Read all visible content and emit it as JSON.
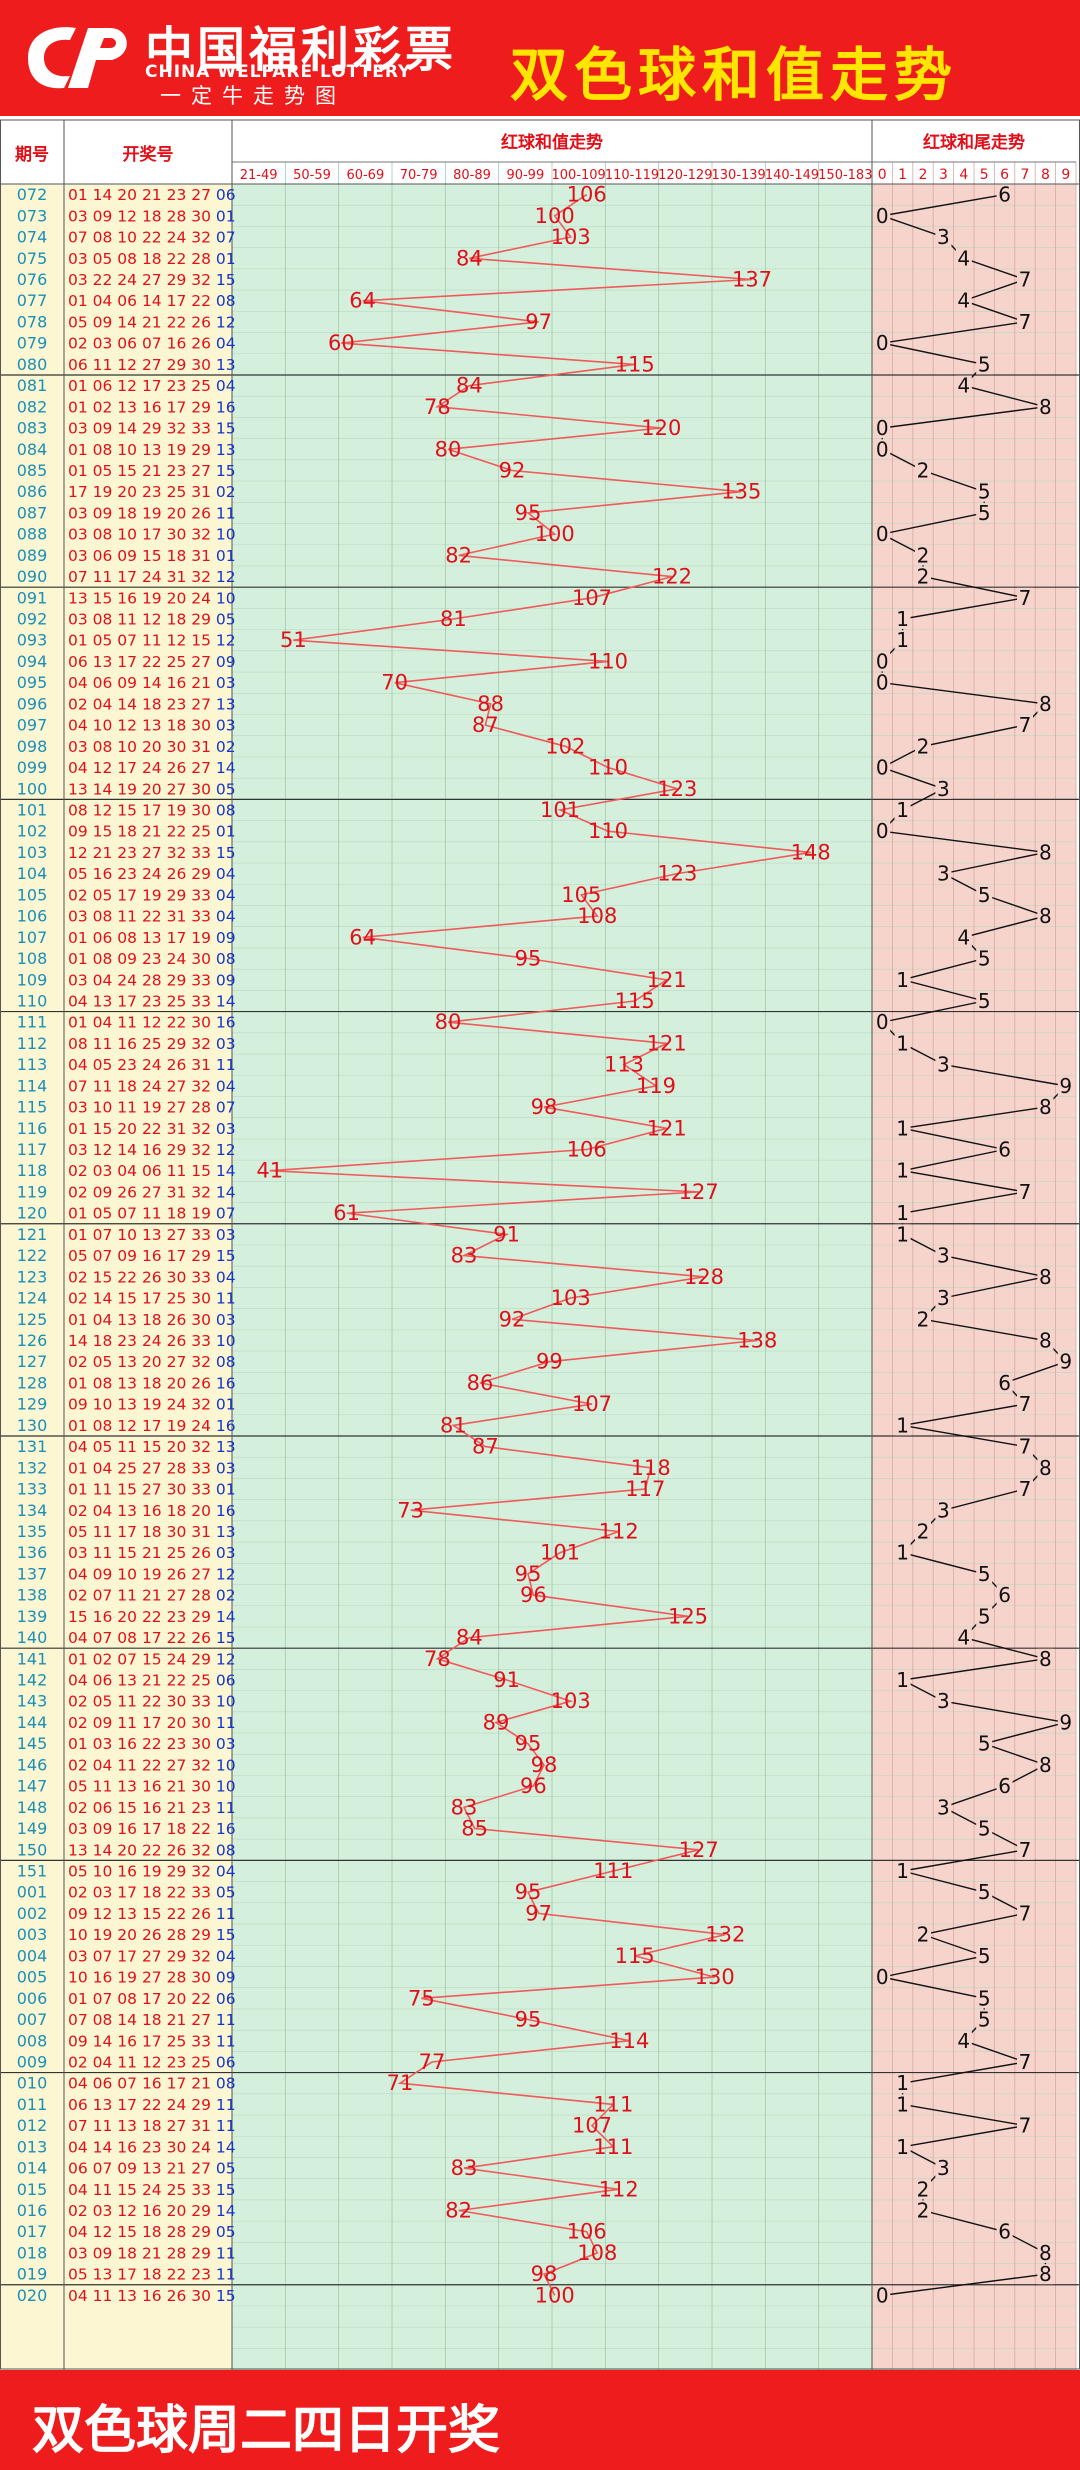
{
  "header": {
    "logo_cn": "中国福利彩票",
    "logo_en": "CHINA WELFARE LOTTERY",
    "logo_sub": "一定牛走势图",
    "title": "双色球和值走势"
  },
  "table": {
    "col_issue": "期号",
    "col_numbers": "开奖号",
    "col_sum": "红球和值走势",
    "col_tail": "红球和尾走势",
    "sum_ranges": [
      "21-49",
      "50-59",
      "60-69",
      "70-79",
      "80-89",
      "90-99",
      "100-109",
      "110-119",
      "120-129",
      "130-139",
      "140-149",
      "150-183"
    ],
    "tail_digits": [
      "0",
      "1",
      "2",
      "3",
      "4",
      "5",
      "6",
      "7",
      "8",
      "9"
    ]
  },
  "footer": {
    "text": "双色球周二四日开奖"
  },
  "colors": {
    "brand_red": "#ee1c1c",
    "title_yellow": "#ffe600",
    "issue_color": "#1a8fb8",
    "red_ball": "#e0101a",
    "blue_ball": "#1436c8",
    "sum_zone": "#d4f0dc",
    "tail_zone": "#f6d4cc",
    "left_zone": "#fcf7d2"
  },
  "chart_data": {
    "type": "line",
    "title": "双色球和值走势",
    "series": [
      {
        "name": "红球和值走势",
        "values": [
          106,
          100,
          103,
          84,
          137,
          64,
          97,
          60,
          115,
          84,
          78,
          120,
          80,
          92,
          135,
          95,
          100,
          82,
          122,
          107,
          81,
          51,
          110,
          70,
          88,
          87,
          102,
          110,
          123,
          101,
          110,
          148,
          123,
          105,
          108,
          64,
          95,
          121,
          115,
          80,
          121,
          113,
          119,
          98,
          121,
          106,
          41,
          127,
          61,
          91,
          83,
          128,
          103,
          92,
          138,
          99,
          86,
          107,
          81,
          87,
          118,
          117,
          73,
          112,
          101,
          95,
          96,
          125,
          84,
          78,
          91,
          103,
          89,
          95,
          98,
          96,
          83,
          85,
          127,
          111,
          95,
          97,
          132,
          115,
          130,
          75,
          95,
          114,
          77,
          71,
          111,
          107,
          111,
          83,
          112,
          82,
          106,
          108,
          98,
          100
        ]
      },
      {
        "name": "红球和尾走势",
        "values": [
          6,
          0,
          3,
          4,
          7,
          4,
          7,
          0,
          5,
          4,
          8,
          0,
          0,
          2,
          5,
          5,
          0,
          2,
          2,
          7,
          1,
          1,
          0,
          0,
          8,
          7,
          2,
          0,
          3,
          1,
          0,
          8,
          3,
          5,
          8,
          4,
          5,
          1,
          5,
          0,
          1,
          3,
          9,
          8,
          1,
          6,
          1,
          7,
          1,
          1,
          3,
          8,
          3,
          2,
          8,
          9,
          6,
          7,
          1,
          7,
          8,
          7,
          3,
          2,
          1,
          5,
          6,
          5,
          4,
          8,
          1,
          3,
          9,
          5,
          8,
          6,
          3,
          5,
          7,
          1,
          5,
          7,
          2,
          5,
          0,
          5,
          5,
          4,
          7,
          1,
          1,
          7,
          1,
          3,
          2,
          2,
          6,
          8,
          8,
          0
        ]
      }
    ],
    "issues": [
      "072",
      "073",
      "074",
      "075",
      "076",
      "077",
      "078",
      "079",
      "080",
      "081",
      "082",
      "083",
      "084",
      "085",
      "086",
      "087",
      "088",
      "089",
      "090",
      "091",
      "092",
      "093",
      "094",
      "095",
      "096",
      "097",
      "098",
      "099",
      "100",
      "101",
      "102",
      "103",
      "104",
      "105",
      "106",
      "107",
      "108",
      "109",
      "110",
      "111",
      "112",
      "113",
      "114",
      "115",
      "116",
      "117",
      "118",
      "119",
      "120",
      "121",
      "122",
      "123",
      "124",
      "125",
      "126",
      "127",
      "128",
      "129",
      "130",
      "131",
      "132",
      "133",
      "134",
      "135",
      "136",
      "137",
      "138",
      "139",
      "140",
      "141",
      "142",
      "143",
      "144",
      "145",
      "146",
      "147",
      "148",
      "149",
      "150",
      "151",
      "001",
      "002",
      "003",
      "004",
      "005",
      "006",
      "007",
      "008",
      "009",
      "010",
      "011",
      "012",
      "013",
      "014",
      "015",
      "016",
      "017",
      "018",
      "019",
      "020"
    ],
    "draws": [
      "01 14 20 21 23 27|06",
      "03 09 12 18 28 30|01",
      "07 08 10 22 24 32|07",
      "03 05 08 18 22 28|01",
      "03 22 24 27 29 32|15",
      "01 04 06 14 17 22|08",
      "05 09 14 21 22 26|12",
      "02 03 06 07 16 26|04",
      "06 11 12 27 29 30|13",
      "01 06 12 17 23 25|04",
      "01 02 13 16 17 29|16",
      "03 09 14 29 32 33|15",
      "01 08 10 13 19 29|13",
      "01 05 15 21 23 27|15",
      "17 19 20 23 25 31|02",
      "03 09 18 19 20 26|11",
      "03 08 10 17 30 32|10",
      "03 06 09 15 18 31|01",
      "07 11 17 24 31 32|12",
      "13 15 16 19 20 24|10",
      "03 08 11 12 18 29|05",
      "01 05 07 11 12 15|12",
      "06 13 17 22 25 27|09",
      "04 06 09 14 16 21|03",
      "02 04 14 18 23 27|13",
      "04 10 12 13 18 30|03",
      "03 08 10 20 30 31|02",
      "04 12 17 24 26 27|14",
      "13 14 19 20 27 30|05",
      "08 12 15 17 19 30|08",
      "09 15 18 21 22 25|01",
      "12 21 23 27 32 33|15",
      "05 16 23 24 26 29|04",
      "02 05 17 19 29 33|04",
      "03 08 11 22 31 33|04",
      "01 06 08 13 17 19|09",
      "01 08 09 23 24 30|08",
      "03 04 24 28 29 33|09",
      "04 13 17 23 25 33|14",
      "01 04 11 12 22 30|16",
      "08 11 16 25 29 32|03",
      "04 05 23 24 26 31|11",
      "07 11 18 24 27 32|04",
      "03 10 11 19 27 28|07",
      "01 15 20 22 31 32|03",
      "03 12 14 16 29 32|12",
      "02 03 04 06 11 15|14",
      "02 09 26 27 31 32|14",
      "01 05 07 11 18 19|07",
      "01 07 10 13 27 33|03",
      "05 07 09 16 17 29|15",
      "02 15 22 26 30 33|04",
      "02 14 15 17 25 30|11",
      "01 04 13 18 26 30|03",
      "14 18 23 24 26 33|10",
      "02 05 13 20 27 32|08",
      "01 08 13 18 20 26|16",
      "09 10 13 19 24 32|01",
      "01 08 12 17 19 24|16",
      "04 05 11 15 20 32|13",
      "01 04 25 27 28 33|03",
      "01 11 15 27 30 33|01",
      "02 04 13 16 18 20|16",
      "05 11 17 18 30 31|13",
      "03 11 15 21 25 26|03",
      "04 09 10 19 26 27|12",
      "02 07 11 21 27 28|02",
      "15 16 20 22 23 29|14",
      "04 07 08 17 22 26|15",
      "01 02 07 15 24 29|12",
      "04 06 13 21 22 25|06",
      "02 05 11 22 30 33|10",
      "02 09 11 17 20 30|11",
      "01 03 16 22 23 30|03",
      "02 04 11 22 27 32|10",
      "05 11 13 16 21 30|10",
      "02 06 15 16 21 23|11",
      "03 09 16 17 18 22|16",
      "13 14 20 22 26 32|08",
      "05 10 16 19 29 32|04",
      "02 03 17 18 22 33|05",
      "09 12 13 15 22 26|11",
      "10 19 20 26 28 29|15",
      "03 07 17 27 29 32|04",
      "10 16 19 27 28 30|09",
      "01 07 08 17 20 22|06",
      "07 08 14 18 21 27|11",
      "09 14 16 17 25 33|11",
      "02 04 11 12 23 25|06",
      "04 06 07 16 17 21|08",
      "06 13 17 22 24 29|11",
      "07 11 13 18 27 31|11",
      "04 14 16 23 30 24|14",
      "06 07 09 13 21 27|05",
      "04 11 15 24 25 33|15",
      "02 03 12 16 20 29|14",
      "04 12 15 18 28 29|05",
      "03 09 18 21 28 29|11",
      "05 13 17 18 22 23|11",
      "04 11 13 16 26 30|15"
    ]
  }
}
